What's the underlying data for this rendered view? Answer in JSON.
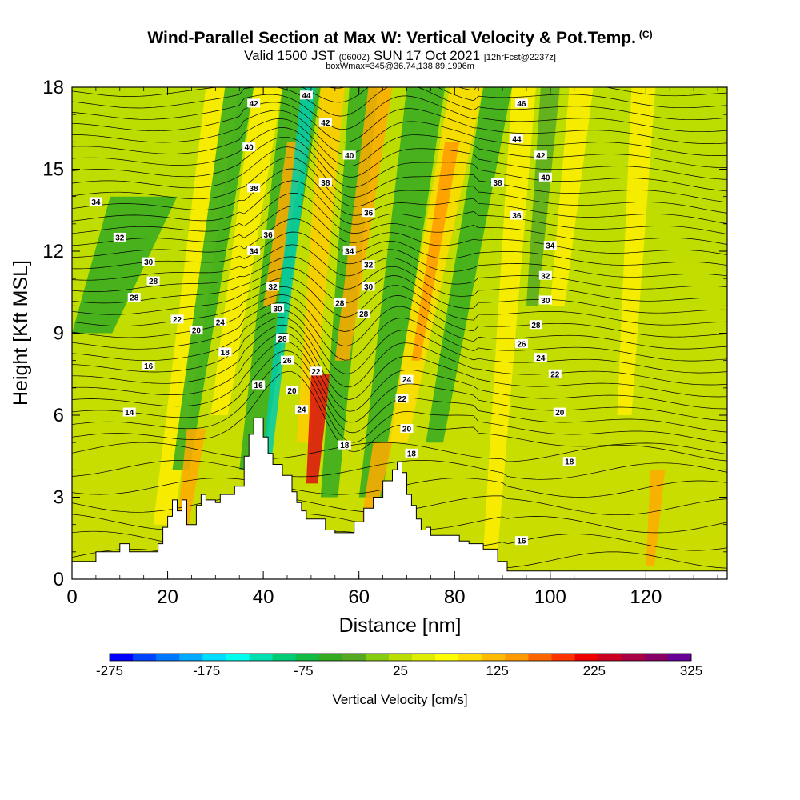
{
  "header": {
    "title": "Wind-Parallel Section at Max W: Vertical Velocity & Pot.Temp.",
    "copyright": "(C)",
    "valid_prefix": "Valid 1500 JST",
    "valid_zulu": "(0600Z)",
    "valid_date": "SUN 17 Oct 2021",
    "forecast": "[12hrFcst@2237z]",
    "box_info": "boxWmax=345@36.74,138.89,1996m"
  },
  "chart_data": {
    "type": "heatmap",
    "xlabel": "Distance [nm]",
    "ylabel": "Height [Kft MSL]",
    "xlim": [
      0,
      137
    ],
    "ylim": [
      0,
      18
    ],
    "x_ticks": [
      0,
      20,
      40,
      60,
      80,
      100,
      120
    ],
    "y_ticks": [
      0,
      3,
      6,
      9,
      12,
      15,
      18
    ],
    "colorbar": {
      "label": "Vertical Velocity [cm/s]",
      "min": -275,
      "max": 325,
      "tick_values": [
        -275,
        -175,
        -75,
        25,
        125,
        225,
        325
      ],
      "colors": [
        "#0000ff",
        "#0044ff",
        "#0077ff",
        "#00aaff",
        "#00ddff",
        "#00ffee",
        "#00e0b0",
        "#00cc77",
        "#11bb44",
        "#33aa22",
        "#55aa22",
        "#88cc11",
        "#bbdd00",
        "#ddee00",
        "#ffff00",
        "#ffdd00",
        "#ffbb00",
        "#ff9900",
        "#ff6600",
        "#ff3300",
        "#ee0000",
        "#cc0022",
        "#aa0044",
        "#880066",
        "#660099"
      ]
    },
    "terrain": [
      [
        0,
        0.65
      ],
      [
        5,
        0.65
      ],
      [
        5,
        1
      ],
      [
        10,
        1
      ],
      [
        10,
        1.3
      ],
      [
        12,
        1.3
      ],
      [
        12,
        1
      ],
      [
        18,
        1
      ],
      [
        18,
        1.3
      ],
      [
        19,
        1.3
      ],
      [
        19,
        1.9
      ],
      [
        20,
        1.9
      ],
      [
        20,
        2.3
      ],
      [
        21,
        2.3
      ],
      [
        21,
        2.9
      ],
      [
        22,
        2.9
      ],
      [
        22,
        2.5
      ],
      [
        23,
        2.5
      ],
      [
        23,
        2.9
      ],
      [
        24,
        2.9
      ],
      [
        24,
        2
      ],
      [
        26,
        2
      ],
      [
        26,
        2.7
      ],
      [
        27,
        2.7
      ],
      [
        27,
        3.1
      ],
      [
        28,
        3.1
      ],
      [
        28,
        2.9
      ],
      [
        30,
        2.9
      ],
      [
        30,
        2.8
      ],
      [
        31,
        2.8
      ],
      [
        31,
        3.1
      ],
      [
        34,
        3.1
      ],
      [
        34,
        3.4
      ],
      [
        36,
        3.4
      ],
      [
        36,
        4.5
      ],
      [
        37,
        4.5
      ],
      [
        37,
        5.3
      ],
      [
        38,
        5.3
      ],
      [
        38,
        5.9
      ],
      [
        40,
        5.9
      ],
      [
        40,
        5.2
      ],
      [
        41,
        5.2
      ],
      [
        41,
        4.6
      ],
      [
        42,
        4.6
      ],
      [
        42,
        4.2
      ],
      [
        44,
        4.2
      ],
      [
        44,
        3.8
      ],
      [
        46,
        3.8
      ],
      [
        46,
        3.2
      ],
      [
        47,
        3.2
      ],
      [
        47,
        2.8
      ],
      [
        48,
        2.8
      ],
      [
        48,
        2.5
      ],
      [
        49,
        2.5
      ],
      [
        49,
        2.2
      ],
      [
        53,
        2.2
      ],
      [
        53,
        1.8
      ],
      [
        55,
        1.8
      ],
      [
        55,
        1.7
      ],
      [
        59,
        1.7
      ],
      [
        59,
        2.1
      ],
      [
        61,
        2.1
      ],
      [
        61,
        2.6
      ],
      [
        63,
        2.6
      ],
      [
        63,
        3
      ],
      [
        65,
        3
      ],
      [
        65,
        3.6
      ],
      [
        67,
        3.6
      ],
      [
        67,
        4
      ],
      [
        68,
        4
      ],
      [
        68,
        4.3
      ],
      [
        69,
        4.3
      ],
      [
        69,
        3.9
      ],
      [
        70,
        3.9
      ],
      [
        70,
        3.1
      ],
      [
        71,
        3.1
      ],
      [
        71,
        2.7
      ],
      [
        72,
        2.7
      ],
      [
        72,
        2.2
      ],
      [
        73,
        2.2
      ],
      [
        73,
        1.8
      ],
      [
        74,
        1.8
      ],
      [
        74,
        1.9
      ],
      [
        75,
        1.9
      ],
      [
        75,
        1.6
      ],
      [
        81,
        1.6
      ],
      [
        81,
        1.4
      ],
      [
        83,
        1.4
      ],
      [
        83,
        1.3
      ],
      [
        86,
        1.3
      ],
      [
        86,
        1.1
      ],
      [
        89,
        1.1
      ],
      [
        89,
        0.65
      ],
      [
        91,
        0.65
      ],
      [
        91,
        0.3
      ],
      [
        137,
        0.3
      ],
      [
        137,
        0
      ],
      [
        0,
        0
      ]
    ],
    "contour_labels": [
      {
        "text": "46",
        "x": 94,
        "y": 17.4
      },
      {
        "text": "44",
        "x": 93,
        "y": 16.1
      },
      {
        "text": "42",
        "x": 98,
        "y": 15.5
      },
      {
        "text": "40",
        "x": 99,
        "y": 14.7
      },
      {
        "text": "38",
        "x": 89,
        "y": 14.5
      },
      {
        "text": "36",
        "x": 93,
        "y": 13.3
      },
      {
        "text": "34",
        "x": 100,
        "y": 12.2
      },
      {
        "text": "32",
        "x": 99,
        "y": 11.1
      },
      {
        "text": "30",
        "x": 99,
        "y": 10.2
      },
      {
        "text": "28",
        "x": 97,
        "y": 9.3
      },
      {
        "text": "26",
        "x": 94,
        "y": 8.6
      },
      {
        "text": "24",
        "x": 98,
        "y": 8.1
      },
      {
        "text": "22",
        "x": 101,
        "y": 7.5
      },
      {
        "text": "20",
        "x": 102,
        "y": 6.1
      },
      {
        "text": "18",
        "x": 104,
        "y": 4.3
      },
      {
        "text": "16",
        "x": 94,
        "y": 1.4
      },
      {
        "text": "42",
        "x": 38,
        "y": 17.4
      },
      {
        "text": "44",
        "x": 49,
        "y": 17.7
      },
      {
        "text": "42",
        "x": 53,
        "y": 16.7
      },
      {
        "text": "40",
        "x": 37,
        "y": 15.8
      },
      {
        "text": "40",
        "x": 58,
        "y": 15.5
      },
      {
        "text": "38",
        "x": 38,
        "y": 14.3
      },
      {
        "text": "38",
        "x": 53,
        "y": 14.5
      },
      {
        "text": "36",
        "x": 62,
        "y": 13.4
      },
      {
        "text": "36",
        "x": 41,
        "y": 12.6
      },
      {
        "text": "34",
        "x": 38,
        "y": 12
      },
      {
        "text": "34",
        "x": 58,
        "y": 12
      },
      {
        "text": "32",
        "x": 62,
        "y": 11.5
      },
      {
        "text": "32",
        "x": 42,
        "y": 10.7
      },
      {
        "text": "30",
        "x": 62,
        "y": 10.7
      },
      {
        "text": "30",
        "x": 43,
        "y": 9.9
      },
      {
        "text": "28",
        "x": 56,
        "y": 10.1
      },
      {
        "text": "28",
        "x": 61,
        "y": 9.7
      },
      {
        "text": "28",
        "x": 44,
        "y": 8.8
      },
      {
        "text": "26",
        "x": 45,
        "y": 8
      },
      {
        "text": "22",
        "x": 51,
        "y": 7.6
      },
      {
        "text": "24",
        "x": 70,
        "y": 7.3
      },
      {
        "text": "20",
        "x": 46,
        "y": 6.9
      },
      {
        "text": "22",
        "x": 69,
        "y": 6.6
      },
      {
        "text": "24",
        "x": 48,
        "y": 6.2
      },
      {
        "text": "20",
        "x": 70,
        "y": 5.5
      },
      {
        "text": "18",
        "x": 57,
        "y": 4.9
      },
      {
        "text": "18",
        "x": 71,
        "y": 4.6
      },
      {
        "text": "34",
        "x": 5,
        "y": 13.8
      },
      {
        "text": "32",
        "x": 10,
        "y": 12.5
      },
      {
        "text": "30",
        "x": 16,
        "y": 11.6
      },
      {
        "text": "28",
        "x": 17,
        "y": 10.9
      },
      {
        "text": "28",
        "x": 13,
        "y": 10.3
      },
      {
        "text": "22",
        "x": 22,
        "y": 9.5
      },
      {
        "text": "20",
        "x": 26,
        "y": 9.1
      },
      {
        "text": "24",
        "x": 31,
        "y": 9.4
      },
      {
        "text": "18",
        "x": 32,
        "y": 8.3
      },
      {
        "text": "16",
        "x": 16,
        "y": 7.8
      },
      {
        "text": "16",
        "x": 39,
        "y": 7.1
      },
      {
        "text": "14",
        "x": 12,
        "y": 6.1
      }
    ]
  }
}
